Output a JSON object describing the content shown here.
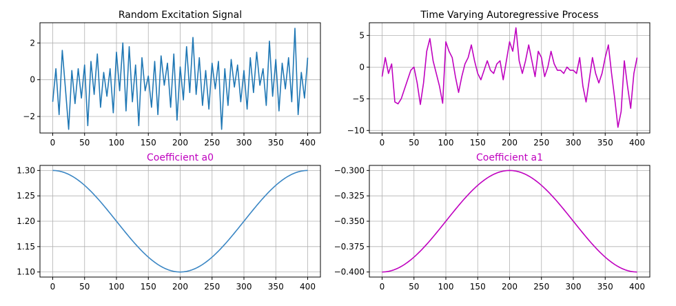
{
  "figure": {
    "background": "#ffffff",
    "grid_color": "#b0b0b0",
    "axis_color": "#000000"
  },
  "chart_data": [
    {
      "type": "line",
      "title": "Random Excitation Signal",
      "title_color": "#000000",
      "xlabel": "",
      "ylabel": "",
      "xlim": [
        -20,
        420
      ],
      "ylim": [
        -2.9,
        3.1
      ],
      "xticks": [
        0,
        50,
        100,
        150,
        200,
        250,
        300,
        350,
        400
      ],
      "yticks": [
        -2,
        0,
        2
      ],
      "ytick_labels": [
        "−2",
        "0",
        "2"
      ],
      "grid": true,
      "series": [
        {
          "color": "#1f77b4",
          "x": [
            0,
            5,
            10,
            15,
            20,
            25,
            30,
            35,
            40,
            45,
            50,
            55,
            60,
            65,
            70,
            75,
            80,
            85,
            90,
            95,
            100,
            105,
            110,
            115,
            120,
            125,
            130,
            135,
            140,
            145,
            150,
            155,
            160,
            165,
            170,
            175,
            180,
            185,
            190,
            195,
            200,
            205,
            210,
            215,
            220,
            225,
            230,
            235,
            240,
            245,
            250,
            255,
            260,
            265,
            270,
            275,
            280,
            285,
            290,
            295,
            300,
            305,
            310,
            315,
            320,
            325,
            330,
            335,
            340,
            345,
            350,
            355,
            360,
            365,
            370,
            375,
            380,
            385,
            390,
            395,
            400
          ],
          "y": [
            -1.2,
            0.6,
            -1.9,
            1.6,
            -0.5,
            -2.7,
            0.5,
            -1.3,
            0.6,
            -1.0,
            0.8,
            -2.5,
            1.0,
            -0.8,
            1.4,
            -1.5,
            0.4,
            -0.9,
            0.6,
            -1.8,
            1.5,
            -0.6,
            2.0,
            -1.7,
            1.8,
            -1.2,
            0.8,
            -2.5,
            1.2,
            -0.6,
            0.2,
            -1.5,
            1.0,
            -1.9,
            1.3,
            -0.3,
            0.9,
            -1.5,
            1.4,
            -2.2,
            0.7,
            -1.1,
            1.8,
            -0.7,
            2.3,
            -0.8,
            1.2,
            -1.4,
            0.5,
            -1.6,
            0.9,
            -0.5,
            1.0,
            -2.7,
            0.6,
            -1.4,
            1.1,
            -0.4,
            0.8,
            -1.2,
            0.5,
            -1.6,
            1.2,
            -0.7,
            1.5,
            -0.3,
            0.6,
            -1.4,
            2.1,
            -0.9,
            1.1,
            -1.7,
            0.9,
            -0.5,
            1.2,
            -1.2,
            2.8,
            -1.9,
            0.4,
            -1.0,
            1.2
          ]
        }
      ]
    },
    {
      "type": "line",
      "title": "Time Varying Autoregressive Process",
      "title_color": "#000000",
      "xlabel": "",
      "ylabel": "",
      "xlim": [
        -20,
        420
      ],
      "ylim": [
        -10.4,
        7.0
      ],
      "xticks": [
        0,
        50,
        100,
        150,
        200,
        250,
        300,
        350,
        400
      ],
      "yticks": [
        -10,
        -5,
        0,
        5
      ],
      "ytick_labels": [
        "−10",
        "−5",
        "0",
        "5"
      ],
      "grid": true,
      "series": [
        {
          "color": "#bf00bf",
          "x": [
            0,
            5,
            10,
            15,
            20,
            25,
            30,
            35,
            40,
            45,
            50,
            55,
            60,
            65,
            70,
            75,
            80,
            85,
            90,
            95,
            100,
            105,
            110,
            115,
            120,
            125,
            130,
            135,
            140,
            145,
            150,
            155,
            160,
            165,
            170,
            175,
            180,
            185,
            190,
            195,
            200,
            205,
            210,
            215,
            220,
            225,
            230,
            235,
            240,
            245,
            250,
            255,
            260,
            265,
            270,
            275,
            280,
            285,
            290,
            295,
            300,
            305,
            310,
            315,
            320,
            325,
            330,
            335,
            340,
            345,
            350,
            355,
            360,
            365,
            370,
            375,
            380,
            385,
            390,
            395,
            400
          ],
          "y": [
            -1.5,
            1.5,
            -1.0,
            0.5,
            -5.5,
            -5.8,
            -5.0,
            -3.5,
            -2.0,
            -0.5,
            0.0,
            -2.5,
            -5.9,
            -2.5,
            2.5,
            4.5,
            1.0,
            -1.0,
            -3.0,
            -5.7,
            4.0,
            2.5,
            1.5,
            -1.5,
            -4.0,
            -1.5,
            0.5,
            1.5,
            3.5,
            1.0,
            -1.0,
            -2.0,
            -0.5,
            1.0,
            -0.5,
            -1.0,
            0.5,
            1.0,
            -2.0,
            1.0,
            4.0,
            2.5,
            6.2,
            1.0,
            -1.0,
            1.0,
            3.5,
            1.0,
            -1.5,
            2.5,
            1.5,
            -1.5,
            0.0,
            2.5,
            0.5,
            -0.5,
            -0.5,
            -1.0,
            0.0,
            -0.5,
            -0.5,
            -1.0,
            1.5,
            -3.0,
            -5.5,
            -2.0,
            1.5,
            -1.0,
            -2.5,
            -1.0,
            1.5,
            3.5,
            -1.0,
            -5.0,
            -9.5,
            -7.0,
            1.0,
            -3.0,
            -6.5,
            -1.0,
            1.5
          ]
        }
      ]
    },
    {
      "type": "line",
      "title": "Coefficient a0",
      "title_color": "#bf00bf",
      "xlabel": "",
      "ylabel": "",
      "xlim": [
        -20,
        420
      ],
      "ylim": [
        1.09,
        1.31
      ],
      "xticks": [
        0,
        50,
        100,
        150,
        200,
        250,
        300,
        350,
        400
      ],
      "yticks": [
        1.1,
        1.15,
        1.2,
        1.25,
        1.3
      ],
      "ytick_labels": [
        "1.10",
        "1.15",
        "1.20",
        "1.25",
        "1.30"
      ],
      "grid": true,
      "series": [
        {
          "color": "#3a86c4",
          "function": "cosine",
          "x_start": 0,
          "x_end": 400,
          "y_at_start": 1.3,
          "y_min": 1.1,
          "y_min_at": 200,
          "y_at_end": 1.3
        }
      ]
    },
    {
      "type": "line",
      "title": "Coefficient a1",
      "title_color": "#bf00bf",
      "xlabel": "",
      "ylabel": "",
      "xlim": [
        -20,
        420
      ],
      "ylim": [
        -0.405,
        -0.295
      ],
      "xticks": [
        0,
        50,
        100,
        150,
        200,
        250,
        300,
        350,
        400
      ],
      "yticks": [
        -0.4,
        -0.375,
        -0.35,
        -0.325,
        -0.3
      ],
      "ytick_labels": [
        "−0.400",
        "−0.375",
        "−0.350",
        "−0.325",
        "−0.300"
      ],
      "grid": true,
      "series": [
        {
          "color": "#bf00bf",
          "function": "sine",
          "x_start": 0,
          "x_end": 400,
          "y_at_start": -0.4,
          "y_max": -0.3,
          "y_max_at": 200,
          "y_at_end": -0.4
        }
      ]
    }
  ]
}
